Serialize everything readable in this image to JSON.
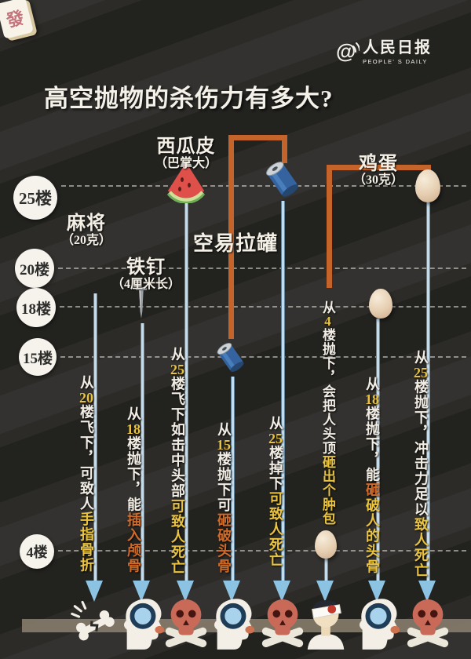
{
  "brand": {
    "at_icon": "@",
    "logo_text": "人民日报",
    "logo_sub": "PEOPLE' S DAILY"
  },
  "title": "高空抛物的杀伤力有多大?",
  "floors": [
    {
      "label": "25楼"
    },
    {
      "label": "20楼"
    },
    {
      "label": "18楼"
    },
    {
      "label": "15楼"
    },
    {
      "label": "4楼"
    }
  ],
  "objects": [
    {
      "name": "mahjong",
      "label": "麻将",
      "sub": "（20克）",
      "tile_char": "發"
    },
    {
      "name": "nail",
      "label": "铁钉",
      "sub": "（4厘米长）"
    },
    {
      "name": "watermelon-rind",
      "label": "西瓜皮",
      "sub": "（巴掌大）"
    },
    {
      "name": "empty-can",
      "label": "空易拉罐",
      "sub": ""
    },
    {
      "name": "egg",
      "label": "鸡蛋",
      "sub": "（30克）"
    }
  ],
  "palette": {
    "w": "#f2ede4",
    "y": "#e9c33f",
    "o": "#cf6a28",
    "accent_orange": "#c4632a",
    "line_blue": "#c7dcea",
    "arrow_blue": "#8cc3e2",
    "background": "#2c2b28"
  },
  "columns": [
    {
      "id": "mahjong-20",
      "impact_icon": "broken-bone",
      "segments": [
        [
          "从",
          "w"
        ],
        [
          "20",
          "y"
        ],
        [
          "楼飞下，可致人",
          "w"
        ],
        [
          "手指骨折",
          "y"
        ]
      ]
    },
    {
      "id": "nail-18",
      "impact_icon": "skull-hole",
      "segments": [
        [
          "从",
          "w"
        ],
        [
          "18",
          "y"
        ],
        [
          "楼抛下，能",
          "w"
        ],
        [
          "插入颅骨",
          "o"
        ]
      ]
    },
    {
      "id": "watermelon-25",
      "impact_icon": "skull-death",
      "segments": [
        [
          "从",
          "w"
        ],
        [
          "25",
          "y"
        ],
        [
          "楼飞下如击中头部",
          "w"
        ],
        [
          "可致人死亡",
          "y"
        ]
      ]
    },
    {
      "id": "can-15",
      "impact_icon": "skull-hole",
      "segments": [
        [
          "从",
          "w"
        ],
        [
          "15",
          "y"
        ],
        [
          "楼抛下可",
          "w"
        ],
        [
          "砸破头骨",
          "o"
        ]
      ]
    },
    {
      "id": "can-25",
      "impact_icon": "skull-death",
      "segments": [
        [
          "从",
          "w"
        ],
        [
          "25",
          "y"
        ],
        [
          "楼掉下",
          "w"
        ],
        [
          "可致人死亡",
          "y"
        ]
      ]
    },
    {
      "id": "egg-4",
      "impact_icon": "bandaged-head",
      "segments": [
        [
          "从",
          "w"
        ],
        [
          "4",
          "y"
        ],
        [
          "楼抛下，",
          "w"
        ],
        [
          "会把人头顶",
          "w"
        ],
        [
          "砸出个肿包",
          "y"
        ]
      ]
    },
    {
      "id": "egg-18",
      "impact_icon": "skull-hole",
      "segments": [
        [
          "从",
          "w"
        ],
        [
          "18",
          "y"
        ],
        [
          "楼抛下，能",
          "w"
        ],
        [
          "砸",
          "o"
        ],
        [
          "破人的头骨",
          "y"
        ]
      ]
    },
    {
      "id": "egg-25",
      "impact_icon": "skull-death",
      "segments": [
        [
          "从",
          "w"
        ],
        [
          "25",
          "y"
        ],
        [
          "楼抛下，冲击力足以",
          "w"
        ],
        [
          "致人死亡",
          "y"
        ]
      ]
    }
  ]
}
